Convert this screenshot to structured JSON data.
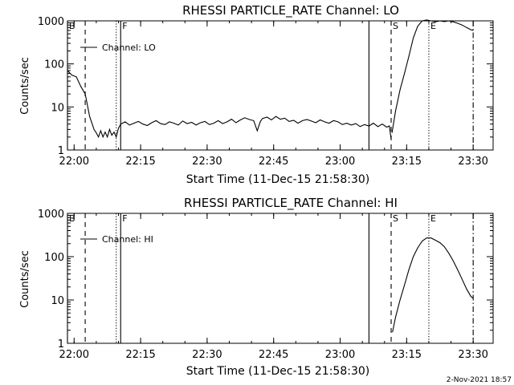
{
  "footer": {
    "date": "2-Nov-2021 18:57"
  },
  "chart_data": [
    {
      "type": "line",
      "title": "RHESSI PARTICLE_RATE Channel: LO",
      "xlabel": "Start Time (11-Dec-15 21:58:30)",
      "ylabel": "Counts/sec",
      "y_scale": "log",
      "xlim_minutes": [
        0,
        96
      ],
      "ylim": [
        1,
        1000
      ],
      "x_ticks": [
        "22:00",
        "22:15",
        "22:30",
        "22:45",
        "23:00",
        "23:15",
        "23:30"
      ],
      "y_ticks": [
        "1",
        "10",
        "100",
        "1000"
      ],
      "legend": {
        "label": "Channel: LO",
        "position": "top-left"
      },
      "markers": [
        {
          "label": "B",
          "minutes": 0,
          "style": "solid"
        },
        {
          "label": "",
          "minutes": 4,
          "style": "dashed"
        },
        {
          "label": "",
          "minutes": 11,
          "style": "dotted"
        },
        {
          "label": "F",
          "minutes": 12,
          "style": "solid"
        },
        {
          "label": "",
          "minutes": 68,
          "style": "solid"
        },
        {
          "label": "S",
          "minutes": 73,
          "style": "dashed"
        },
        {
          "label": "E",
          "minutes": 81.5,
          "style": "dotted"
        },
        {
          "label": "",
          "minutes": 91.5,
          "style": "dashdot"
        }
      ],
      "series": [
        {
          "segments": [
            [
              [
                0,
                70
              ],
              [
                1,
                55
              ],
              [
                2,
                50
              ],
              [
                3,
                30
              ],
              [
                4,
                20
              ],
              [
                5,
                6
              ],
              [
                6,
                3
              ],
              [
                6.5,
                2.5
              ],
              [
                7,
                2
              ],
              [
                7.5,
                2.8
              ],
              [
                8,
                2
              ],
              [
                8.5,
                2.6
              ],
              [
                9,
                2
              ],
              [
                9.5,
                3
              ],
              [
                10,
                2.2
              ],
              [
                10.5,
                2.6
              ],
              [
                11,
                2
              ],
              [
                11.5,
                3.2
              ],
              [
                12,
                4
              ]
            ],
            [
              [
                12,
                4
              ],
              [
                13,
                4.5
              ],
              [
                14,
                3.8
              ],
              [
                15,
                4.2
              ],
              [
                16,
                4.6
              ],
              [
                17,
                4
              ],
              [
                18,
                3.7
              ],
              [
                19,
                4.3
              ],
              [
                20,
                4.8
              ],
              [
                21,
                4.1
              ],
              [
                22,
                3.9
              ],
              [
                23,
                4.5
              ],
              [
                24,
                4.2
              ],
              [
                25,
                3.8
              ],
              [
                26,
                4.7
              ],
              [
                27,
                4.1
              ],
              [
                28,
                4.4
              ],
              [
                29,
                3.8
              ],
              [
                30,
                4.3
              ],
              [
                31,
                4.6
              ],
              [
                32,
                3.9
              ],
              [
                33,
                4.2
              ],
              [
                34,
                4.8
              ],
              [
                35,
                4.1
              ],
              [
                36,
                4.5
              ],
              [
                37,
                5.2
              ],
              [
                38,
                4.3
              ],
              [
                39,
                5
              ],
              [
                40,
                5.6
              ],
              [
                41,
                5.1
              ],
              [
                42,
                4.8
              ],
              [
                42.8,
                2.8
              ],
              [
                43.5,
                4.6
              ],
              [
                44,
                5.4
              ],
              [
                45,
                5.8
              ],
              [
                46,
                5
              ],
              [
                47,
                6
              ],
              [
                48,
                5.2
              ],
              [
                49,
                5.5
              ],
              [
                50,
                4.6
              ],
              [
                51,
                4.9
              ],
              [
                52,
                4.2
              ],
              [
                53,
                4.8
              ],
              [
                54,
                5.1
              ],
              [
                55,
                4.7
              ],
              [
                56,
                4.3
              ],
              [
                57,
                5
              ],
              [
                58,
                4.5
              ],
              [
                59,
                4.2
              ],
              [
                60,
                4.8
              ],
              [
                61,
                4.5
              ],
              [
                62,
                3.9
              ],
              [
                63,
                4.2
              ],
              [
                64,
                3.8
              ],
              [
                65,
                4.1
              ],
              [
                66,
                3.5
              ],
              [
                67,
                3.9
              ],
              [
                68,
                3.6
              ],
              [
                69,
                4.2
              ],
              [
                70,
                3.5
              ],
              [
                71,
                4
              ],
              [
                72,
                3.4
              ],
              [
                72.6,
                3.6
              ],
              [
                73,
                1.8
              ]
            ],
            [
              [
                73.2,
                2.5
              ],
              [
                74,
                8
              ],
              [
                75,
                25
              ],
              [
                76,
                60
              ],
              [
                77,
                150
              ],
              [
                78,
                400
              ],
              [
                79,
                750
              ],
              [
                80,
                1000
              ],
              [
                81,
                1050
              ],
              [
                82,
                1000
              ],
              [
                83,
                950
              ],
              [
                84,
                1000
              ],
              [
                85,
                960
              ],
              [
                86,
                1000
              ],
              [
                87,
                950
              ],
              [
                88,
                880
              ],
              [
                89,
                800
              ],
              [
                90,
                700
              ],
              [
                91,
                620
              ],
              [
                91.5,
                600
              ]
            ]
          ]
        }
      ]
    },
    {
      "type": "line",
      "title": "RHESSI PARTICLE_RATE Channel: HI",
      "xlabel": "Start Time (11-Dec-15 21:58:30)",
      "ylabel": "Counts/sec",
      "y_scale": "log",
      "xlim_minutes": [
        0,
        96
      ],
      "ylim": [
        1,
        1000
      ],
      "x_ticks": [
        "22:00",
        "22:15",
        "22:30",
        "22:45",
        "23:00",
        "23:15",
        "23:30"
      ],
      "y_ticks": [
        "1",
        "10",
        "100",
        "1000"
      ],
      "legend": {
        "label": "Channel: HI",
        "position": "top-left"
      },
      "markers": [
        {
          "label": "B",
          "minutes": 0,
          "style": "solid"
        },
        {
          "label": "",
          "minutes": 4,
          "style": "dashed"
        },
        {
          "label": "",
          "minutes": 11,
          "style": "dotted"
        },
        {
          "label": "F",
          "minutes": 12,
          "style": "solid"
        },
        {
          "label": "",
          "minutes": 68,
          "style": "solid"
        },
        {
          "label": "S",
          "minutes": 73,
          "style": "dashed"
        },
        {
          "label": "E",
          "minutes": 81.5,
          "style": "dotted"
        },
        {
          "label": "",
          "minutes": 91.5,
          "style": "dashdot"
        }
      ],
      "series": [
        {
          "segments": [
            [
              [
                73.3,
                1.8
              ],
              [
                74,
                4
              ],
              [
                75,
                10
              ],
              [
                76,
                22
              ],
              [
                77,
                50
              ],
              [
                78,
                100
              ],
              [
                79,
                160
              ],
              [
                80,
                230
              ],
              [
                81,
                270
              ],
              [
                82,
                270
              ],
              [
                83,
                240
              ],
              [
                84,
                210
              ],
              [
                85,
                170
              ],
              [
                86,
                120
              ],
              [
                87,
                80
              ],
              [
                88,
                50
              ],
              [
                89,
                30
              ],
              [
                90,
                18
              ],
              [
                91,
                12
              ],
              [
                91.5,
                11
              ]
            ]
          ]
        }
      ]
    }
  ]
}
